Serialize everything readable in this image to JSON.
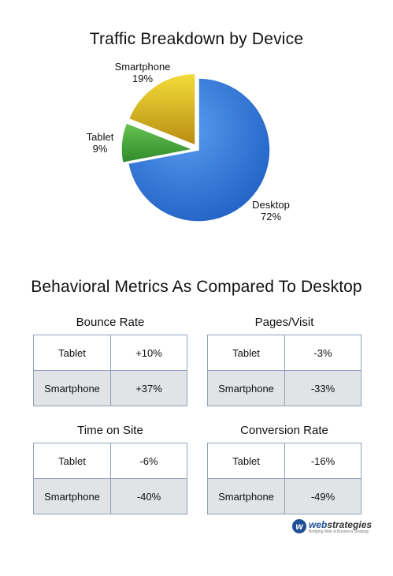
{
  "chart_data": {
    "type": "pie",
    "title": "Traffic Breakdown by Device",
    "slices": [
      {
        "label": "Desktop",
        "value": 72,
        "value_text": "72%",
        "color": "#2e70d6",
        "exploded": false
      },
      {
        "label": "Tablet",
        "value": 9,
        "value_text": "9%",
        "color": "#4aa83a",
        "exploded": true
      },
      {
        "label": "Smartphone",
        "value": 19,
        "value_text": "19%",
        "color": "#e2c11f",
        "exploded": true
      }
    ]
  },
  "metrics": {
    "title": "Behavioral Metrics As Compared To Desktop",
    "tables": [
      {
        "title": "Bounce Rate",
        "rows": [
          {
            "device": "Tablet",
            "value": "+10%"
          },
          {
            "device": "Smartphone",
            "value": "+37%"
          }
        ]
      },
      {
        "title": "Pages/Visit",
        "rows": [
          {
            "device": "Tablet",
            "value": "-3%"
          },
          {
            "device": "Smartphone",
            "value": "-33%"
          }
        ]
      },
      {
        "title": "Time on Site",
        "rows": [
          {
            "device": "Tablet",
            "value": "-6%"
          },
          {
            "device": "Smartphone",
            "value": "-40%"
          }
        ]
      },
      {
        "title": "Conversion Rate",
        "rows": [
          {
            "device": "Tablet",
            "value": "-16%"
          },
          {
            "device": "Smartphone",
            "value": "-49%"
          }
        ]
      }
    ]
  },
  "logo": {
    "mark": "w",
    "text_prefix": "web",
    "text_suffix": "strategies",
    "tagline": "Bridging Web & Business Strategy"
  }
}
